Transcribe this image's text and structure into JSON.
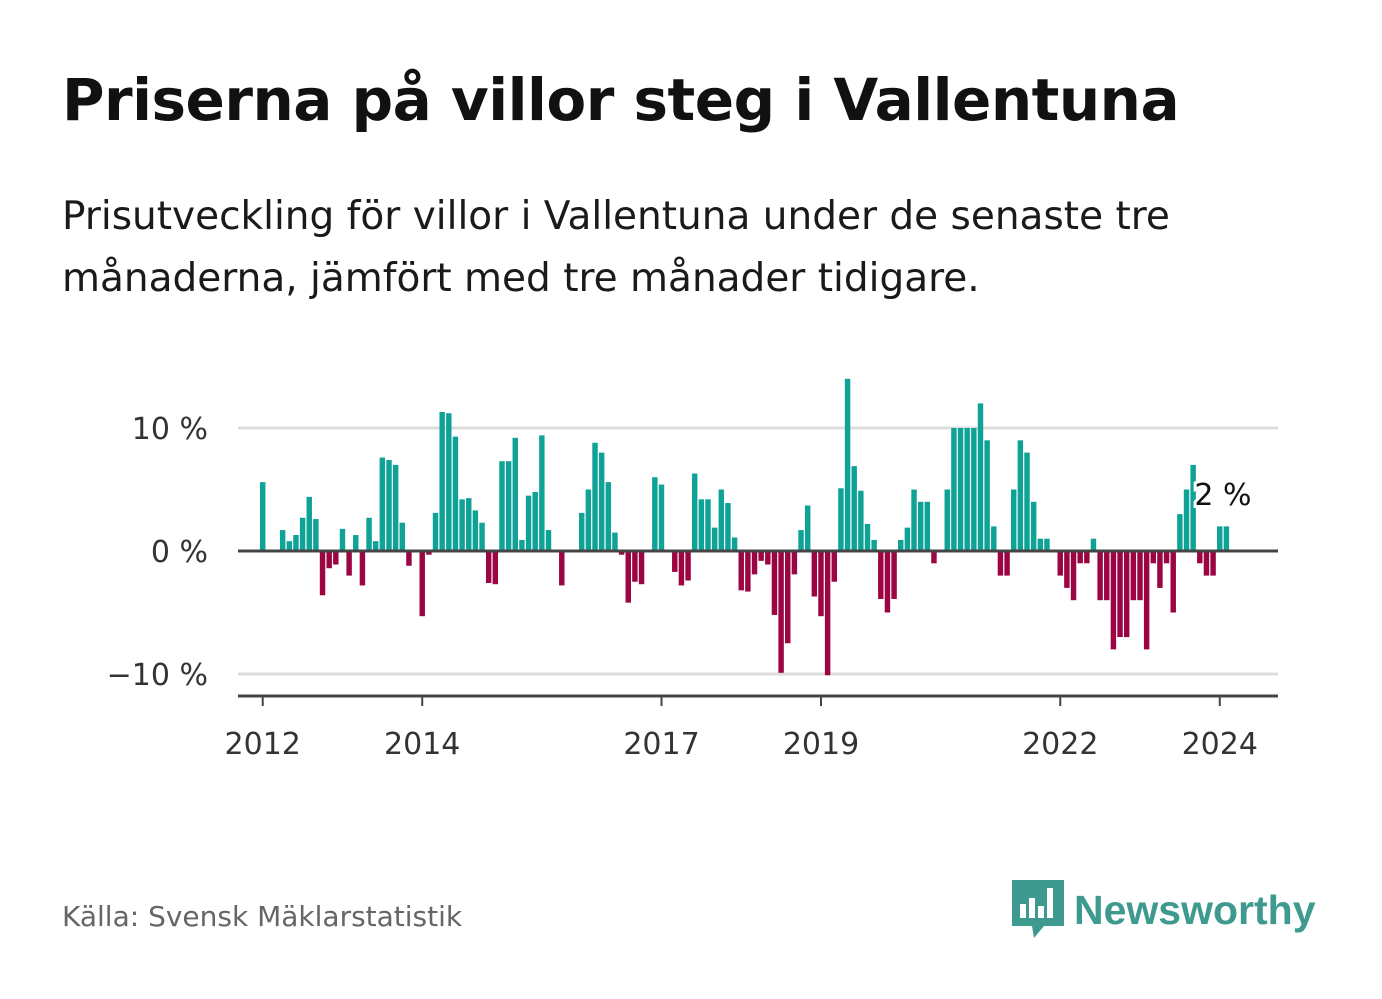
{
  "header": {
    "title": "Priserna på villor steg i Vallentuna",
    "subtitle": "Prisutveckling för villor i Vallentuna under de senaste tre månaderna, jämfört med tre månader tidigare."
  },
  "footer": {
    "source": "Källa: Svensk Mäklarstatistik",
    "brand": "Newsworthy"
  },
  "colors": {
    "positive": "#0fa398",
    "negative": "#9b0543",
    "zero_line": "#444444",
    "grid": "#dddddd",
    "brand": "#3e9a8f"
  },
  "chart_data": {
    "type": "bar",
    "title": "Priserna på villor steg i Vallentuna",
    "xlabel": "",
    "ylabel": "",
    "ylim": [
      -11.5,
      14.5
    ],
    "x_range": [
      2011.69,
      2024.73
    ],
    "grid": true,
    "unit": "%",
    "y_ticks": [
      {
        "value": 10,
        "label": "10 %"
      },
      {
        "value": 0,
        "label": "0 %"
      },
      {
        "value": -10,
        "label": "−10 %"
      }
    ],
    "x_ticks": [
      {
        "value": 2012,
        "label": "2012"
      },
      {
        "value": 2014,
        "label": "2014"
      },
      {
        "value": 2017,
        "label": "2017"
      },
      {
        "value": 2019,
        "label": "2019"
      },
      {
        "value": 2022,
        "label": "2022"
      },
      {
        "value": 2024,
        "label": "2024"
      }
    ],
    "start": 2012.0,
    "step": 0.08333,
    "values": [
      5.6,
      null,
      null,
      1.7,
      0.8,
      1.3,
      2.7,
      4.4,
      2.6,
      -3.6,
      -1.4,
      -1.1,
      1.8,
      -2.0,
      1.3,
      -2.8,
      2.7,
      0.8,
      7.6,
      7.4,
      7.0,
      2.3,
      -1.2,
      null,
      -5.3,
      -0.3,
      3.1,
      11.3,
      11.2,
      9.3,
      4.2,
      4.3,
      3.3,
      2.3,
      -2.6,
      -2.7,
      7.3,
      7.3,
      9.2,
      0.9,
      4.5,
      4.8,
      9.4,
      1.7,
      null,
      -2.8,
      null,
      null,
      3.1,
      5.0,
      8.8,
      8.0,
      5.6,
      1.5,
      -0.3,
      -4.2,
      -2.5,
      -2.7,
      null,
      6.0,
      5.4,
      null,
      -1.7,
      -2.8,
      -2.4,
      6.3,
      4.2,
      4.2,
      1.9,
      5.0,
      3.9,
      1.1,
      -3.2,
      -3.3,
      -1.9,
      -0.8,
      -1.1,
      -5.2,
      -9.9,
      -7.5,
      -1.9,
      1.7,
      3.7,
      -3.7,
      -5.3,
      -10.1,
      -2.5,
      5.1,
      14.0,
      6.9,
      4.9,
      2.2,
      0.9,
      -3.9,
      -5.0,
      -3.9,
      0.9,
      1.9,
      5.0,
      4.0,
      4.0,
      -1.0,
      null,
      5.0,
      10.0,
      10.0,
      10.0,
      10.0,
      12.0,
      9.0,
      2.0,
      -2.0,
      -2.0,
      5.0,
      9.0,
      8.0,
      4.0,
      1.0,
      1.0,
      null,
      -2.0,
      -3.0,
      -4.0,
      -1.0,
      -1.0,
      1.0,
      -4.0,
      -4.0,
      -8.0,
      -7.0,
      -7.0,
      -4.0,
      -4.0,
      -8.0,
      -1.0,
      -3.0,
      -1.0,
      -5.0,
      3.0,
      5.0,
      7.0,
      -1.0,
      -2.0,
      -2.0,
      2.0,
      2.0
    ],
    "last_value_label": "2 %"
  }
}
